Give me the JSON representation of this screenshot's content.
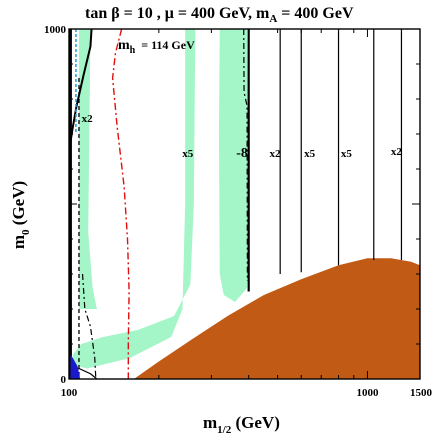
{
  "chart_data": {
    "type": "contour",
    "title_main": "tan β = 10 ,  μ = 400 GeV,  m",
    "title_sub": "A",
    "title_end": " = 400 GeV",
    "xlabel_main": "m",
    "xlabel_sub": "1/2",
    "xlabel_unit": " (GeV)",
    "ylabel_main": "m",
    "ylabel_sub": "0",
    "ylabel_unit": " (GeV)",
    "x_scale": "log",
    "xlim": [
      100,
      1500
    ],
    "ylim": [
      0,
      1000
    ],
    "x_tick_labels": [
      {
        "value": 100,
        "label": "100"
      },
      {
        "value": 1000,
        "label": "1000"
      },
      {
        "value": 1500,
        "label": "1500"
      }
    ],
    "y_tick_labels": [
      {
        "value": 0,
        "label": "0"
      },
      {
        "value": 1000,
        "label": "1000"
      }
    ],
    "mh_label": {
      "symbol": "m",
      "sub": "h",
      "text": "= 114 GeV"
    },
    "contour_labels": [
      {
        "text": "x2",
        "x": 115,
        "y": 735
      },
      {
        "text": "x5",
        "x": 250,
        "y": 635
      },
      {
        "text": "-8",
        "x": 380,
        "y": 635
      },
      {
        "text": "x2",
        "x": 490,
        "y": 635
      },
      {
        "text": "x5",
        "x": 640,
        "y": 635
      },
      {
        "text": "x5",
        "x": 850,
        "y": 635
      },
      {
        "text": "x2",
        "x": 1250,
        "y": 640
      }
    ],
    "regions": {
      "charged_lsp": {
        "color": "#c05a14",
        "boundary": [
          [
            165,
            0
          ],
          [
            200,
            50
          ],
          [
            260,
            115
          ],
          [
            340,
            180
          ],
          [
            450,
            240
          ],
          [
            600,
            285
          ],
          [
            800,
            325
          ],
          [
            1000,
            345
          ],
          [
            1200,
            345
          ],
          [
            1400,
            335
          ],
          [
            1500,
            325
          ],
          [
            1500,
            0
          ]
        ]
      },
      "relic_density": {
        "color": "#a4f5c8"
      },
      "b_to_s_gamma": {
        "color": "#1a1acc"
      },
      "lep_chargino": {
        "color": "#000000"
      }
    },
    "mh_contour": [
      [
        150,
        1000
      ],
      [
        143,
        930
      ],
      [
        140,
        860
      ],
      [
        145,
        720
      ],
      [
        153,
        550
      ],
      [
        157,
        400
      ],
      [
        159,
        250
      ],
      [
        158,
        100
      ],
      [
        158,
        0
      ]
    ],
    "vertical_contours": [
      {
        "x": 400,
        "ybottom": 250,
        "kind": "thick"
      },
      {
        "x": 510,
        "ybottom": 300,
        "kind": "thin"
      },
      {
        "x": 600,
        "ybottom": 305,
        "kind": "thin"
      },
      {
        "x": 800,
        "ybottom": 325,
        "kind": "thin"
      },
      {
        "x": 1050,
        "ybottom": 340,
        "kind": "thin"
      },
      {
        "x": 1300,
        "ybottom": 340,
        "kind": "thin"
      }
    ]
  }
}
